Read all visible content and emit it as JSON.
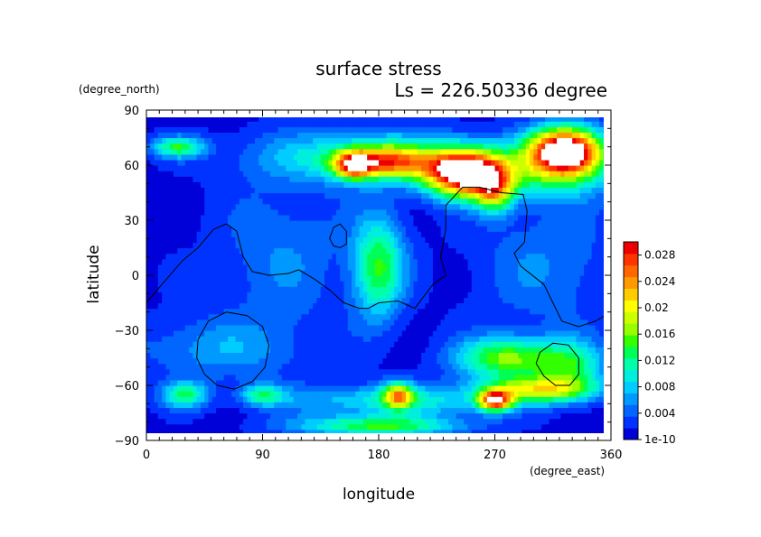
{
  "chart_data": {
    "type": "heatmap",
    "title": "surface stress",
    "subtitle": "Ls = 226.50336 degree",
    "xlabel": "longitude",
    "ylabel": "latitude",
    "xunits": "(degree_east)",
    "yunits": "(degree_north)",
    "xlim": [
      0,
      360
    ],
    "ylim": [
      -90,
      90
    ],
    "xticks": [
      0,
      90,
      180,
      270,
      360
    ],
    "yticks": [
      -90,
      -60,
      -30,
      0,
      30,
      60,
      90
    ],
    "colorbar": {
      "min": 0,
      "max": 0.03,
      "tick_labels": [
        "1e-10",
        "0.004",
        "0.008",
        "0.012",
        "0.016",
        "0.02",
        "0.024",
        "0.028"
      ],
      "tick_values": [
        0,
        0.004,
        0.008,
        0.012,
        0.016,
        0.02,
        0.024,
        0.028
      ],
      "colors": [
        "#0000d8",
        "#0033ff",
        "#0066ff",
        "#0099ff",
        "#00ccff",
        "#00eedd",
        "#00ffaa",
        "#00ff55",
        "#33ff00",
        "#99ff00",
        "#ccff00",
        "#ffff00",
        "#ffcc00",
        "#ff9900",
        "#ff6600",
        "#ff3300",
        "#ee0000"
      ],
      "overflow_color": "#ffffff"
    },
    "grid": false,
    "features": [
      {
        "lon": 25,
        "lat": 70,
        "lon_spread": 14,
        "lat_spread": 4,
        "value": 0.012
      },
      {
        "lon": 170,
        "lat": 65,
        "lon_spread": 60,
        "lat_spread": 10,
        "value": 0.009
      },
      {
        "lon": 185,
        "lat": 62,
        "lon_spread": 25,
        "lat_spread": 6,
        "value": 0.018
      },
      {
        "lon": 160,
        "lat": 60,
        "lon_spread": 10,
        "lat_spread": 5,
        "value": 0.017
      },
      {
        "lon": 248,
        "lat": 56,
        "lon_spread": 22,
        "lat_spread": 9,
        "value": 0.034
      },
      {
        "lon": 270,
        "lat": 45,
        "lon_spread": 10,
        "lat_spread": 8,
        "value": 0.013
      },
      {
        "lon": 325,
        "lat": 68,
        "lon_spread": 20,
        "lat_spread": 9,
        "value": 0.035
      },
      {
        "lon": 315,
        "lat": 55,
        "lon_spread": 35,
        "lat_spread": 10,
        "value": 0.008
      },
      {
        "lon": 180,
        "lat": 5,
        "lon_spread": 14,
        "lat_spread": 20,
        "value": 0.013
      },
      {
        "lon": 105,
        "lat": 10,
        "lon_spread": 35,
        "lat_spread": 30,
        "value": 0.004
      },
      {
        "lon": 310,
        "lat": 5,
        "lon_spread": 40,
        "lat_spread": 25,
        "value": 0.004
      },
      {
        "lon": 55,
        "lat": -40,
        "lon_spread": 45,
        "lat_spread": 12,
        "value": 0.005
      },
      {
        "lon": 280,
        "lat": -45,
        "lon_spread": 28,
        "lat_spread": 8,
        "value": 0.015
      },
      {
        "lon": 330,
        "lat": -50,
        "lon_spread": 18,
        "lat_spread": 10,
        "value": 0.01
      },
      {
        "lon": 305,
        "lat": -62,
        "lon_spread": 30,
        "lat_spread": 5,
        "value": 0.016
      },
      {
        "lon": 270,
        "lat": -68,
        "lon_spread": 9,
        "lat_spread": 4,
        "value": 0.024
      },
      {
        "lon": 195,
        "lat": -68,
        "lon_spread": 60,
        "lat_spread": 6,
        "value": 0.009
      },
      {
        "lon": 180,
        "lat": -82,
        "lon_spread": 45,
        "lat_spread": 4,
        "value": 0.013
      },
      {
        "lon": 195,
        "lat": -65,
        "lon_spread": 8,
        "lat_spread": 5,
        "value": 0.016
      },
      {
        "lon": 30,
        "lat": -65,
        "lon_spread": 12,
        "lat_spread": 5,
        "value": 0.011
      },
      {
        "lon": 90,
        "lat": -65,
        "lon_spread": 12,
        "lat_spread": 4,
        "value": 0.01
      }
    ],
    "contours": [
      {
        "name": "dichotomy",
        "closed": false,
        "points": [
          [
            0,
            -15
          ],
          [
            12,
            -5
          ],
          [
            28,
            8
          ],
          [
            40,
            15
          ],
          [
            52,
            25
          ],
          [
            62,
            28
          ],
          [
            70,
            24
          ],
          [
            75,
            10
          ],
          [
            82,
            2
          ],
          [
            95,
            0
          ],
          [
            110,
            1
          ],
          [
            118,
            3
          ],
          [
            130,
            -2
          ],
          [
            142,
            -8
          ],
          [
            153,
            -15
          ],
          [
            165,
            -18
          ],
          [
            172,
            -18
          ],
          [
            180,
            -15
          ],
          [
            195,
            -14
          ],
          [
            208,
            -18
          ],
          [
            222,
            -5
          ],
          [
            232,
            0
          ],
          [
            228,
            10
          ],
          [
            232,
            25
          ],
          [
            232,
            38
          ],
          [
            245,
            48
          ],
          [
            258,
            48
          ],
          [
            275,
            45
          ],
          [
            292,
            44
          ],
          [
            295,
            35
          ],
          [
            293,
            18
          ],
          [
            285,
            12
          ],
          [
            290,
            5
          ],
          [
            308,
            -5
          ],
          [
            315,
            -15
          ],
          [
            322,
            -25
          ],
          [
            335,
            -28
          ],
          [
            348,
            -25
          ],
          [
            360,
            -20
          ]
        ]
      },
      {
        "name": "hellas",
        "closed": true,
        "points": [
          [
            40,
            -35
          ],
          [
            48,
            -25
          ],
          [
            62,
            -20
          ],
          [
            78,
            -22
          ],
          [
            90,
            -28
          ],
          [
            95,
            -38
          ],
          [
            92,
            -50
          ],
          [
            82,
            -58
          ],
          [
            68,
            -62
          ],
          [
            55,
            -60
          ],
          [
            45,
            -54
          ],
          [
            39,
            -45
          ]
        ]
      },
      {
        "name": "argyre",
        "closed": true,
        "points": [
          [
            305,
            -42
          ],
          [
            315,
            -37
          ],
          [
            327,
            -38
          ],
          [
            335,
            -45
          ],
          [
            335,
            -54
          ],
          [
            328,
            -60
          ],
          [
            317,
            -60
          ],
          [
            308,
            -55
          ],
          [
            302,
            -48
          ]
        ]
      },
      {
        "name": "elysium",
        "closed": true,
        "points": [
          [
            142,
            20
          ],
          [
            145,
            26
          ],
          [
            150,
            28
          ],
          [
            155,
            24
          ],
          [
            155,
            17
          ],
          [
            150,
            15
          ],
          [
            145,
            16
          ]
        ]
      }
    ]
  }
}
